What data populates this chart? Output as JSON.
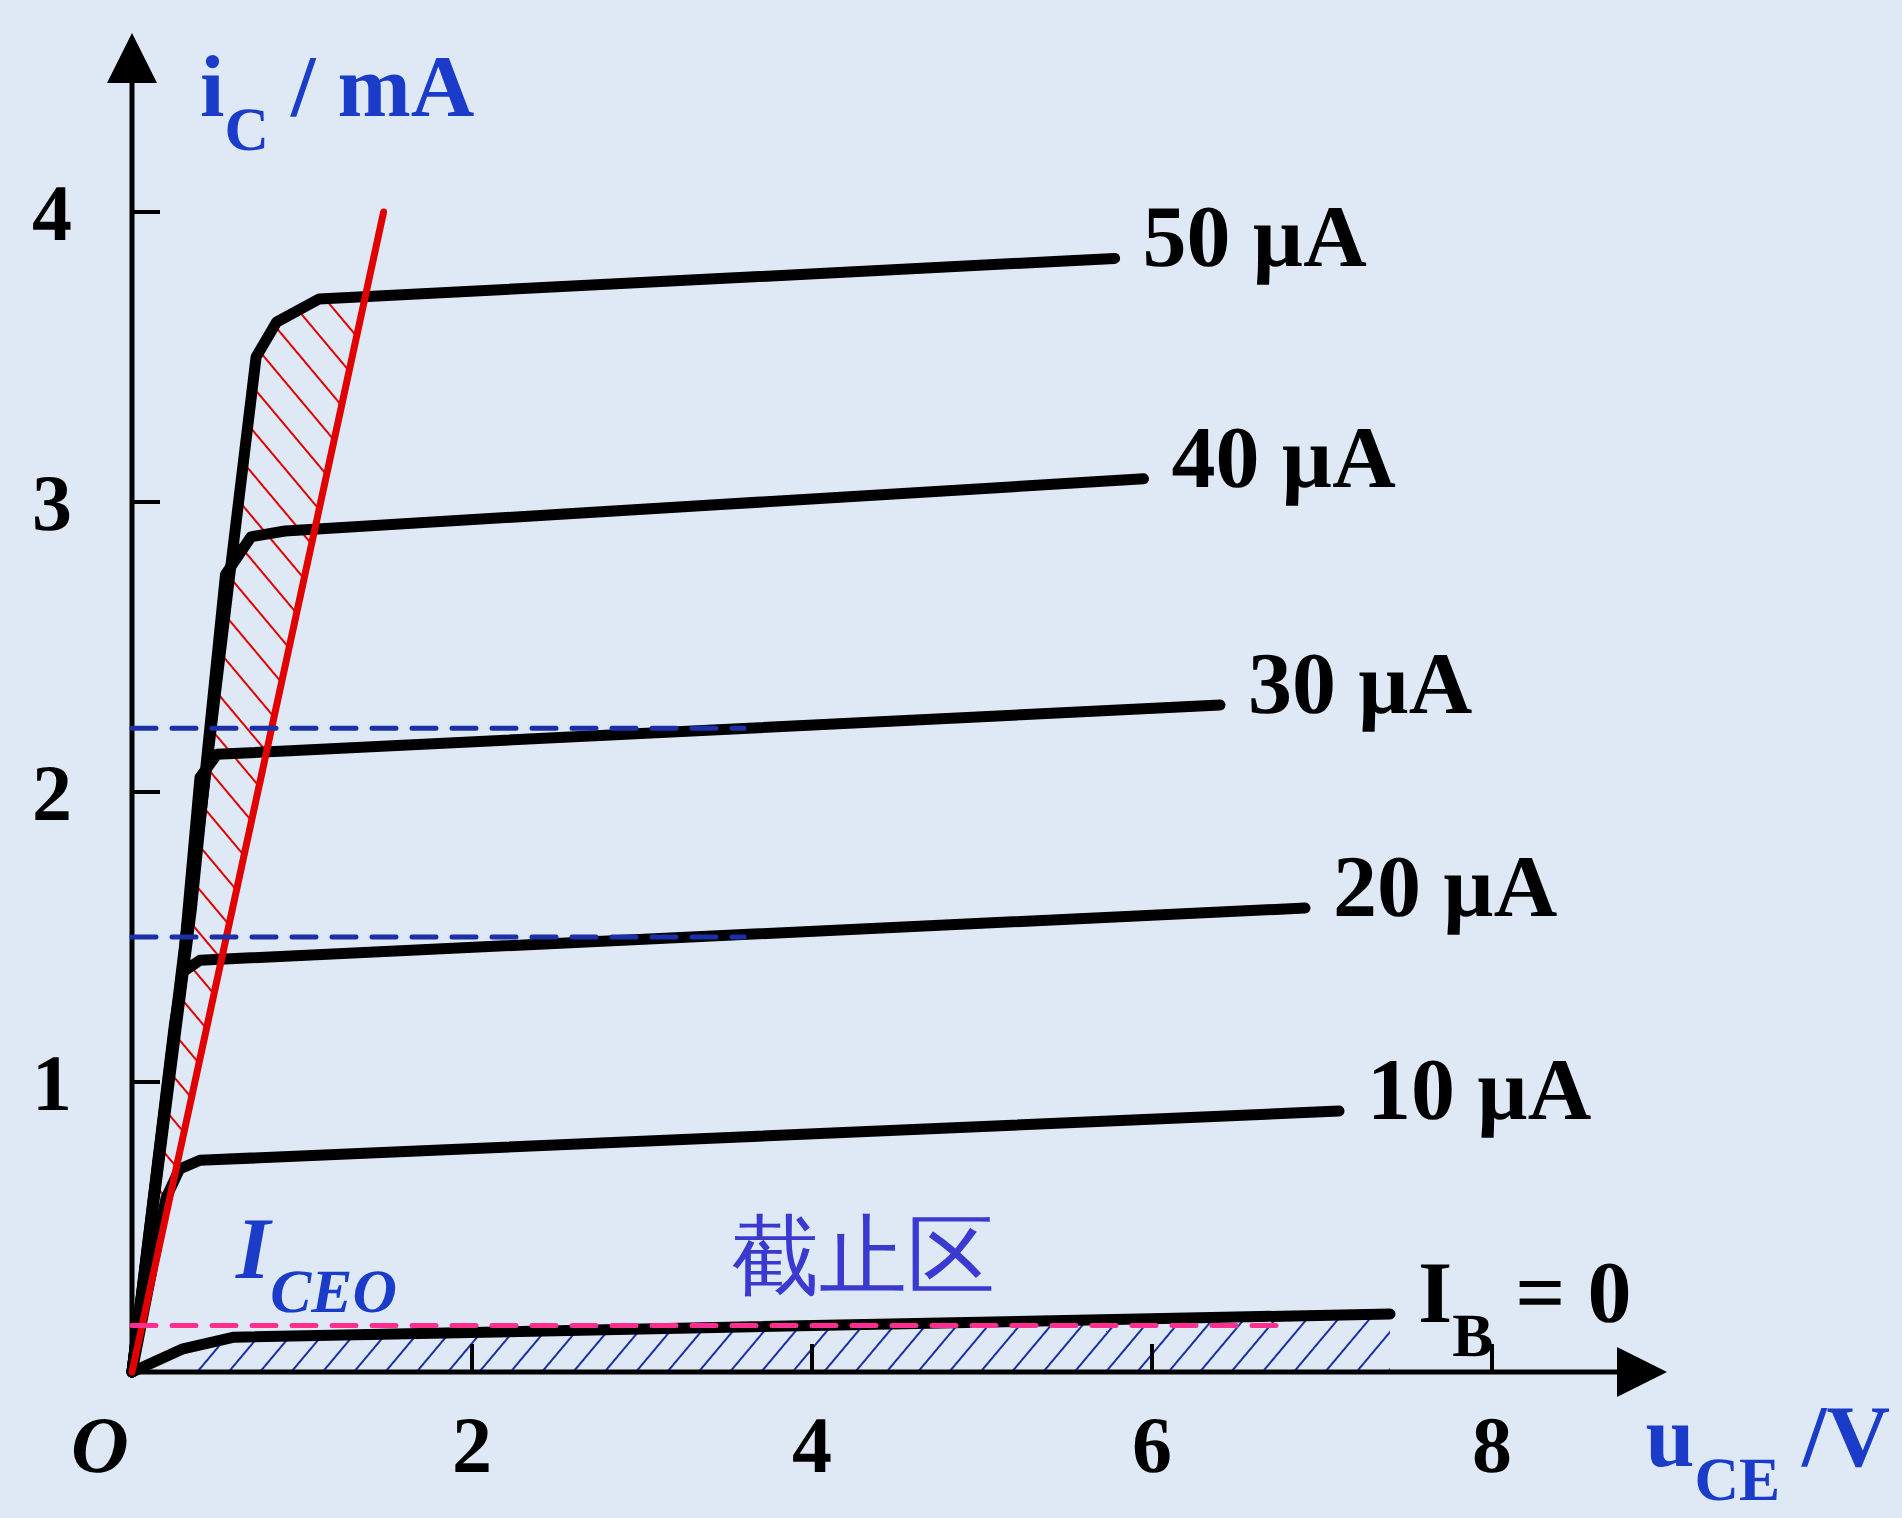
{
  "chart_data": {
    "type": "line",
    "xlabel": "u$_{CE}$ /V",
    "ylabel": "i$_{C}$ / mA",
    "annotations": [
      "I$_{CEO}$",
      "截止区"
    ],
    "xlim": [
      0,
      9
    ],
    "ylim": [
      0,
      4.6
    ],
    "xticks": [
      {
        "value": 0,
        "label": "O"
      },
      2,
      4,
      6,
      8
    ],
    "yticks": [
      1,
      2,
      3,
      4
    ],
    "line_style": "solid",
    "series": [
      {
        "name": "50 µA",
        "color": "#000000",
        "x": [
          0,
          0.4,
          0.73,
          0.85,
          1.1,
          5.78
        ],
        "values": [
          0,
          1.9,
          3.5,
          3.62,
          3.7,
          3.84
        ]
      },
      {
        "name": "40 µA",
        "color": "#000000",
        "x": [
          0,
          0.35,
          0.55,
          0.7,
          0.9,
          5.95
        ],
        "values": [
          0,
          1.6,
          2.75,
          2.88,
          2.9,
          3.08
        ]
      },
      {
        "name": "30 µA",
        "color": "#000000",
        "x": [
          0,
          0.3,
          0.4,
          0.5,
          6.4
        ],
        "values": [
          0,
          1.4,
          2.05,
          2.13,
          2.3
        ]
      },
      {
        "name": "20 µA",
        "color": "#000000",
        "x": [
          0,
          0.25,
          0.3,
          0.4,
          6.9
        ],
        "values": [
          0,
          1.2,
          1.38,
          1.42,
          1.6
        ]
      },
      {
        "name": "10 µA",
        "color": "#000000",
        "x": [
          0,
          0.2,
          0.28,
          0.4,
          7.1
        ],
        "values": [
          0,
          0.6,
          0.7,
          0.73,
          0.9
        ]
      },
      {
        "name": "I$_{B}$ = 0",
        "color": "#000000",
        "x": [
          0,
          0.3,
          0.6,
          7.4
        ],
        "values": [
          0,
          0.08,
          0.12,
          0.2
        ]
      },
      {
        "color": "#e00000",
        "x": [
          0,
          1.48
        ],
        "values": [
          0,
          4.0
        ]
      },
      {
        "color": "#1a2fa8",
        "line_style": "dashed",
        "x": [
          0,
          3.6
        ],
        "values": [
          2.22,
          2.22
        ]
      },
      {
        "color": "#1a2fa8",
        "line_style": "dashed",
        "x": [
          0,
          3.6
        ],
        "values": [
          1.5,
          1.5
        ]
      },
      {
        "color": "#ff2f8f",
        "line_style": "dashed",
        "x": [
          0,
          6.75
        ],
        "values": [
          0.16,
          0.16
        ]
      }
    ]
  }
}
